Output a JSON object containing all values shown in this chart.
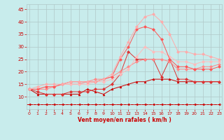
{
  "x": [
    0,
    1,
    2,
    3,
    4,
    5,
    6,
    7,
    8,
    9,
    10,
    11,
    12,
    13,
    14,
    15,
    16,
    17,
    18,
    19,
    20,
    21,
    22,
    23
  ],
  "series": [
    {
      "color": "#cc0000",
      "linewidth": 0.7,
      "marker": "^",
      "markersize": 2,
      "values": [
        13,
        11,
        11,
        11,
        11,
        11,
        11,
        13,
        12,
        11,
        13,
        14,
        15,
        16,
        16,
        17,
        17,
        17,
        16,
        16,
        16,
        16,
        16,
        16
      ]
    },
    {
      "color": "#dd3333",
      "linewidth": 0.7,
      "marker": "D",
      "markersize": 2,
      "values": [
        13,
        12,
        11,
        11,
        11,
        12,
        12,
        12,
        13,
        13,
        15,
        19,
        28,
        25,
        25,
        25,
        18,
        25,
        17,
        17,
        16,
        16,
        16,
        16
      ]
    },
    {
      "color": "#ff8888",
      "linewidth": 0.7,
      "marker": "D",
      "markersize": 2,
      "values": [
        13,
        13,
        13,
        14,
        15,
        15,
        15,
        16,
        17,
        17,
        18,
        20,
        22,
        24,
        25,
        25,
        25,
        24,
        21,
        21,
        21,
        22,
        22,
        23
      ]
    },
    {
      "color": "#ffbbbb",
      "linewidth": 0.7,
      "marker": "D",
      "markersize": 2,
      "values": [
        13,
        13,
        14,
        14,
        15,
        15,
        15,
        15,
        16,
        16,
        17,
        19,
        21,
        26,
        30,
        28,
        28,
        26,
        24,
        24,
        23,
        24,
        24,
        24
      ]
    },
    {
      "color": "#ff5555",
      "linewidth": 0.7,
      "marker": "D",
      "markersize": 2,
      "values": [
        13,
        13,
        14,
        14,
        15,
        16,
        16,
        16,
        16,
        17,
        18,
        25,
        30,
        37,
        38,
        37,
        33,
        25,
        22,
        22,
        21,
        21,
        21,
        22
      ]
    },
    {
      "color": "#ffaaaa",
      "linewidth": 0.7,
      "marker": "D",
      "markersize": 2,
      "values": [
        13,
        14,
        15,
        15,
        15,
        16,
        16,
        16,
        16,
        17,
        19,
        26,
        32,
        38,
        42,
        43,
        40,
        35,
        28,
        28,
        27,
        27,
        26,
        25
      ]
    },
    {
      "color": "#cc0000",
      "linewidth": 0.7,
      "marker": "<",
      "markersize": 2,
      "linestyle": "--",
      "values": [
        7,
        7,
        7,
        7,
        7,
        7,
        7,
        7,
        7,
        7,
        7,
        7,
        7,
        7,
        7,
        7,
        7,
        7,
        7,
        7,
        7,
        7,
        7,
        7
      ]
    }
  ],
  "xlabel": "Vent moyen/en rafales ( km/h )",
  "xlim": [
    -0.3,
    23.3
  ],
  "ylim": [
    5,
    47
  ],
  "yticks": [
    10,
    15,
    20,
    25,
    30,
    35,
    40,
    45
  ],
  "xticks": [
    0,
    1,
    2,
    3,
    4,
    5,
    6,
    7,
    8,
    9,
    10,
    11,
    12,
    13,
    14,
    15,
    16,
    17,
    18,
    19,
    20,
    21,
    22,
    23
  ],
  "bg_color": "#c8ecec",
  "grid_color": "#b0c8c8",
  "tick_color": "#cc0000",
  "label_color": "#cc0000",
  "figsize": [
    3.2,
    2.0
  ],
  "dpi": 100
}
